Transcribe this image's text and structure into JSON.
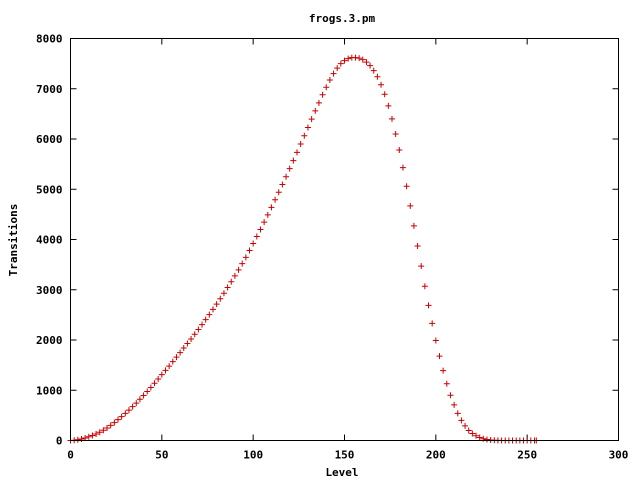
{
  "chart_data": {
    "type": "scatter",
    "title": "frogs.3.pm",
    "xlabel": "Level",
    "ylabel": "Transitions",
    "xlim": [
      0,
      300
    ],
    "ylim": [
      0,
      8000
    ],
    "xticks": [
      0,
      50,
      100,
      150,
      200,
      250,
      300
    ],
    "yticks": [
      0,
      1000,
      2000,
      3000,
      4000,
      5000,
      6000,
      7000,
      8000
    ],
    "xtick_labels": [
      "0",
      "50",
      "100",
      "150",
      "200",
      "250",
      "300"
    ],
    "ytick_labels": [
      "0",
      "1000",
      "2000",
      "3000",
      "4000",
      "5000",
      "6000",
      "7000",
      "8000"
    ],
    "grid": false,
    "legend": "none",
    "marker": "+",
    "color": "#cc0000",
    "series": [
      {
        "x": [
          0,
          2,
          4,
          6,
          8,
          10,
          12,
          14,
          16,
          18,
          20,
          22,
          24,
          26,
          28,
          30,
          32,
          34,
          36,
          38,
          40,
          42,
          44,
          46,
          48,
          50,
          52,
          54,
          56,
          58,
          60,
          62,
          64,
          66,
          68,
          70,
          72,
          74,
          76,
          78,
          80,
          82,
          84,
          86,
          88,
          90,
          92,
          94,
          96,
          98,
          100,
          102,
          104,
          106,
          108,
          110,
          112,
          114,
          116,
          118,
          120,
          122,
          124,
          126,
          128,
          130,
          132,
          134,
          136,
          138,
          140,
          142,
          144,
          146,
          148,
          150,
          152,
          154,
          156,
          158,
          160,
          162,
          164,
          166,
          168,
          170,
          172,
          174,
          176,
          178,
          180,
          182,
          184,
          186,
          188,
          190,
          192,
          194,
          196,
          198,
          200,
          202,
          204,
          206,
          208,
          210,
          212,
          214,
          216,
          218,
          220,
          222,
          224,
          226,
          228,
          230,
          232,
          234,
          236,
          238,
          240,
          242,
          244,
          246,
          248,
          250,
          252,
          254,
          255
        ],
        "y": [
          0,
          5,
          15,
          30,
          50,
          75,
          100,
          130,
          165,
          205,
          250,
          300,
          355,
          415,
          475,
          540,
          605,
          675,
          745,
          820,
          895,
          975,
          1055,
          1140,
          1225,
          1310,
          1395,
          1480,
          1570,
          1660,
          1750,
          1840,
          1930,
          2020,
          2115,
          2210,
          2305,
          2405,
          2505,
          2610,
          2715,
          2820,
          2930,
          3045,
          3160,
          3275,
          3395,
          3520,
          3645,
          3780,
          3920,
          4060,
          4200,
          4345,
          4490,
          4640,
          4790,
          4940,
          5095,
          5250,
          5410,
          5570,
          5735,
          5900,
          6065,
          6230,
          6395,
          6560,
          6720,
          6880,
          7030,
          7175,
          7300,
          7410,
          7500,
          7560,
          7600,
          7620,
          7620,
          7610,
          7580,
          7530,
          7460,
          7360,
          7240,
          7080,
          6890,
          6660,
          6400,
          6100,
          5780,
          5430,
          5060,
          4670,
          4270,
          3870,
          3470,
          3070,
          2690,
          2330,
          1990,
          1680,
          1390,
          1130,
          900,
          710,
          540,
          400,
          290,
          200,
          140,
          95,
          60,
          35,
          20,
          10,
          5,
          2,
          0,
          0,
          0,
          0,
          0,
          0,
          0,
          0,
          0,
          0,
          0
        ]
      }
    ]
  }
}
